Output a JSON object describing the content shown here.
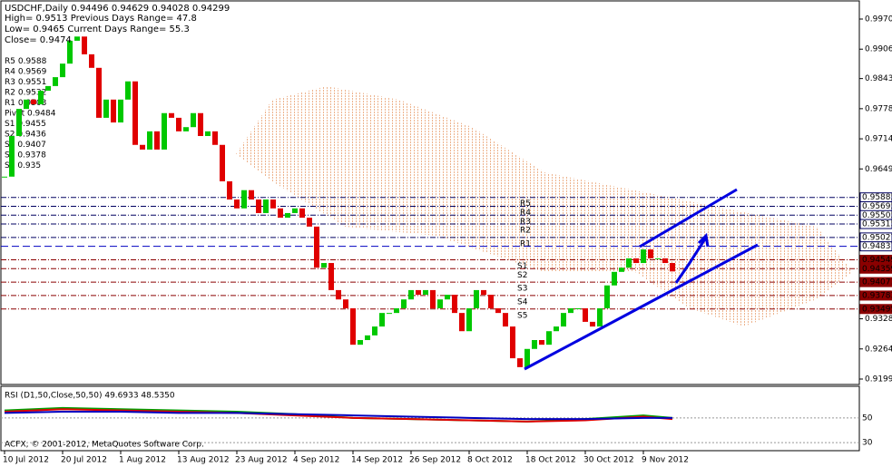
{
  "chart_data": {
    "type": "candlestick",
    "header": [
      "USDCHF,Daily  0.94496 0.94629 0.94028 0.94299",
      "High= 0.9513   Previous Days Range= 47.8",
      "Low= 0.9465   Current Days Range= 55.3",
      "Close= 0.9474"
    ],
    "close": [
      0.9633,
      0.972,
      0.9778,
      0.9798,
      0.9788,
      0.9817,
      0.9827,
      0.9846,
      0.9875,
      0.9924,
      0.9933,
      0.9895,
      0.9866,
      0.9759,
      0.9798,
      0.9749,
      0.9798,
      0.9837,
      0.9701,
      0.9691,
      0.973,
      0.9691,
      0.9769,
      0.9759,
      0.973,
      0.9739,
      0.9769,
      0.972,
      0.973,
      0.9701,
      0.9623,
      0.9584,
      0.9565,
      0.9604,
      0.9584,
      0.9555,
      0.9584,
      0.9565,
      0.9545,
      0.9555,
      0.9565,
      0.9545,
      0.9526,
      0.9438,
      0.9448,
      0.939,
      0.937,
      0.9351,
      0.9273,
      0.9283,
      0.9293,
      0.9312,
      0.9341,
      0.9341,
      0.9351,
      0.937,
      0.939,
      0.938,
      0.939,
      0.9351,
      0.937,
      0.938,
      0.9341,
      0.9302,
      0.9351,
      0.939,
      0.938,
      0.9351,
      0.9341,
      0.9312,
      0.9244,
      0.9225,
      0.9264,
      0.9283,
      0.9273,
      0.9302,
      0.9312,
      0.9341,
      0.9351,
      0.9351,
      0.9322,
      0.9312,
      0.9351,
      0.94,
      0.9429,
      0.9438,
      0.9458,
      0.9448,
      0.9477,
      0.9458,
      0.9458,
      0.9448,
      0.943
    ],
    "up_color": "#00c800",
    "down_color": "#e00000",
    "ylim": [
      0.91995,
      0.99705
    ],
    "yticks": [
      0.99705,
      0.9906,
      0.9843,
      0.97785,
      0.9714,
      0.96495,
      0.93285,
      0.9264,
      0.91995
    ],
    "xticks": [
      {
        "value": 0,
        "label": "10 Jul 2012"
      },
      {
        "value": 8,
        "label": "20 Jul 2012"
      },
      {
        "value": 16,
        "label": "1 Aug 2012"
      },
      {
        "value": 24,
        "label": "13 Aug 2012"
      },
      {
        "value": 32,
        "label": "23 Aug 2012"
      },
      {
        "value": 40,
        "label": "4 Sep 2012"
      },
      {
        "value": 48,
        "label": "14 Sep 2012"
      },
      {
        "value": 56,
        "label": "26 Sep 2012"
      },
      {
        "value": 64,
        "label": "8 Oct 2012"
      },
      {
        "value": 72,
        "label": "18 Oct 2012"
      },
      {
        "value": 80,
        "label": "30 Oct 2012"
      },
      {
        "value": 88,
        "label": "9 Nov 2012"
      }
    ],
    "pivots": [
      {
        "name": "R5",
        "value": 0.9588,
        "price": 0.95885
      },
      {
        "name": "R4",
        "value": 0.9569,
        "price": 0.95695
      },
      {
        "name": "R3",
        "value": 0.9551,
        "price": 0.95505
      },
      {
        "name": "R2",
        "value": 0.9532,
        "price": 0.95315
      },
      {
        "name": "R1",
        "value": 0.9503,
        "price": 0.95027
      },
      {
        "name": "Pivot",
        "value": 0.9484,
        "price": 0.94837
      },
      {
        "name": "S1",
        "value": 0.9455,
        "price": 0.94549
      },
      {
        "name": "S2",
        "value": 0.9436,
        "price": 0.94359
      },
      {
        "name": "S3",
        "value": 0.9407,
        "price": 0.94071
      },
      {
        "name": "S4",
        "value": 0.9378,
        "price": 0.93783
      },
      {
        "name": "S5",
        "value": 0.935,
        "price": 0.93495
      }
    ],
    "rsi": {
      "title": "RSI (D1,50,Close,50,50) 49.6933 48.5350",
      "ylim": [
        25,
        74
      ],
      "yticks": [
        50,
        30
      ],
      "x": [
        0,
        8,
        16,
        24,
        32,
        40,
        48,
        56,
        64,
        72,
        80,
        88,
        92
      ],
      "series": [
        {
          "color": "#00a000",
          "values": [
            56,
            58,
            57,
            56,
            55,
            53,
            50,
            49,
            48,
            47,
            49,
            52,
            50
          ]
        },
        {
          "color": "#e00000",
          "values": [
            55,
            57,
            56,
            55,
            54,
            52,
            50,
            49,
            48,
            47,
            48,
            51,
            49
          ]
        },
        {
          "color": "#0000c0",
          "values": [
            54,
            55,
            55,
            54,
            54,
            53,
            52,
            51,
            50,
            49,
            49,
            50,
            50
          ]
        }
      ]
    },
    "footer": "ACFX, © 2001-2012, MetaQuotes Software Corp."
  }
}
